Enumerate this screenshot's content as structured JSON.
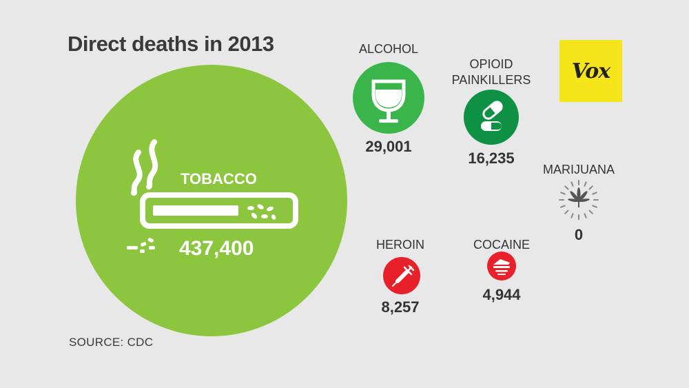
{
  "title": "Direct deaths in 2013",
  "source": "SOURCE: CDC",
  "logo": {
    "text": "Vox",
    "color": "#f7e51b"
  },
  "chart_data": {
    "type": "bubble",
    "title": "Direct deaths in 2013",
    "series": [
      {
        "label": "TOBACCO",
        "value": 437400,
        "display": "437,400",
        "color": "#8cc63f",
        "icon": "cigarette-icon"
      },
      {
        "label": "ALCOHOL",
        "value": 29001,
        "display": "29,001",
        "color": "#3ab54a",
        "icon": "wine-glass-icon"
      },
      {
        "label": "OPIOID PAINKILLERS",
        "label_lines": [
          "OPIOID",
          "PAINKILLERS"
        ],
        "value": 16235,
        "display": "16,235",
        "color": "#0f9145",
        "icon": "pill-capsule-icon"
      },
      {
        "label": "HEROIN",
        "value": 8257,
        "display": "8,257",
        "color": "#e8202a",
        "icon": "syringe-icon"
      },
      {
        "label": "COCAINE",
        "value": 4944,
        "display": "4,944",
        "color": "#e8202a",
        "icon": "cocaine-icon"
      },
      {
        "label": "MARIJUANA",
        "value": 0,
        "display": "0",
        "color": "#ffffff",
        "icon": "cannabis-leaf-icon"
      }
    ]
  }
}
